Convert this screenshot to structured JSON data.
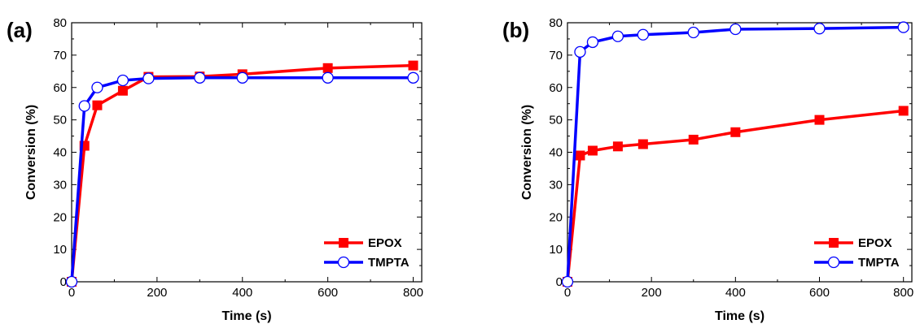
{
  "chart_data": [
    {
      "type": "line",
      "panel_label": "(a)",
      "xlabel": "Time (s)",
      "ylabel": "Conversion (%)",
      "xlim": [
        0,
        820
      ],
      "ylim": [
        0,
        80
      ],
      "xticks": [
        0,
        200,
        400,
        600,
        800
      ],
      "yticks": [
        0,
        10,
        20,
        30,
        40,
        50,
        60,
        70,
        80
      ],
      "legend_position": "bottom-right",
      "series": [
        {
          "name": "EPOX",
          "color": "#ff0000",
          "marker": "filled-square",
          "x": [
            0,
            30,
            60,
            120,
            180,
            300,
            400,
            600,
            800
          ],
          "y": [
            0,
            42,
            54.5,
            59,
            63.3,
            63.4,
            64.1,
            66,
            66.8
          ]
        },
        {
          "name": "TMPTA",
          "color": "#0000ff",
          "marker": "open-circle",
          "x": [
            0,
            30,
            60,
            120,
            180,
            300,
            400,
            600,
            800
          ],
          "y": [
            0,
            54.3,
            60,
            62.2,
            62.8,
            63,
            63,
            63,
            63
          ]
        }
      ]
    },
    {
      "type": "line",
      "panel_label": "(b)",
      "xlabel": "Time (s)",
      "ylabel": "Conversion (%)",
      "xlim": [
        0,
        820
      ],
      "ylim": [
        0,
        80
      ],
      "xticks": [
        0,
        200,
        400,
        600,
        800
      ],
      "yticks": [
        0,
        10,
        20,
        30,
        40,
        50,
        60,
        70,
        80
      ],
      "legend_position": "bottom-right",
      "series": [
        {
          "name": "EPOX",
          "color": "#ff0000",
          "marker": "filled-square",
          "x": [
            0,
            30,
            60,
            120,
            180,
            300,
            400,
            600,
            800
          ],
          "y": [
            0,
            39,
            40.5,
            41.8,
            42.5,
            43.9,
            46.2,
            50,
            52.8
          ]
        },
        {
          "name": "TMPTA",
          "color": "#0000ff",
          "marker": "open-circle",
          "x": [
            0,
            30,
            60,
            120,
            180,
            300,
            400,
            600,
            800
          ],
          "y": [
            0,
            71,
            74,
            75.8,
            76.3,
            77,
            78,
            78.2,
            78.6
          ]
        }
      ]
    }
  ]
}
